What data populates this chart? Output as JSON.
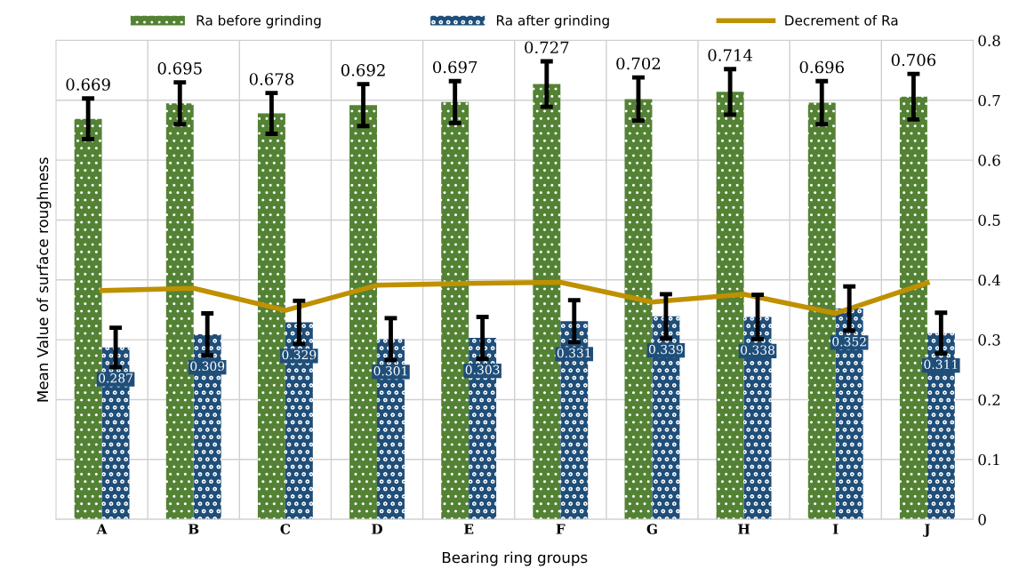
{
  "chart_data": {
    "type": "bar",
    "xlabel": "Bearing ring groups",
    "ylabel": "Mean Value of surface roughness",
    "categories": [
      "A",
      "B",
      "C",
      "D",
      "E",
      "F",
      "G",
      "H",
      "I",
      "J"
    ],
    "series": [
      {
        "name": "Ra before grinding",
        "color": "#548235",
        "values": [
          0.669,
          0.695,
          0.678,
          0.692,
          0.697,
          0.727,
          0.702,
          0.714,
          0.696,
          0.706
        ],
        "value_labels": [
          "0.669",
          "0.695",
          "0.678",
          "0.692",
          "0.697",
          "0.727",
          "0.702",
          "0.714",
          "0.696",
          "0.706"
        ],
        "errors": [
          0.034,
          0.035,
          0.034,
          0.035,
          0.035,
          0.038,
          0.036,
          0.038,
          0.036,
          0.038
        ]
      },
      {
        "name": "Ra after grinding",
        "color": "#1f4e79",
        "values": [
          0.287,
          0.309,
          0.329,
          0.301,
          0.303,
          0.331,
          0.339,
          0.338,
          0.352,
          0.311
        ],
        "value_labels": [
          "0.287",
          "0.309",
          "0.329",
          "0.301",
          "0.303",
          "0.331",
          "0.339",
          "0.338",
          "0.352",
          "0.311"
        ],
        "errors": [
          0.033,
          0.035,
          0.036,
          0.035,
          0.035,
          0.035,
          0.037,
          0.037,
          0.037,
          0.034
        ]
      },
      {
        "name": "Decrement of Ra",
        "type": "line",
        "color": "#bf9000",
        "values": [
          0.382,
          0.386,
          0.349,
          0.391,
          0.394,
          0.396,
          0.363,
          0.376,
          0.344,
          0.395
        ]
      }
    ],
    "ylim": [
      0,
      0.8
    ],
    "yticks": [
      0,
      0.1,
      0.2,
      0.3,
      0.4,
      0.5,
      0.6,
      0.7,
      0.8
    ],
    "grid": true,
    "legend": "top"
  }
}
